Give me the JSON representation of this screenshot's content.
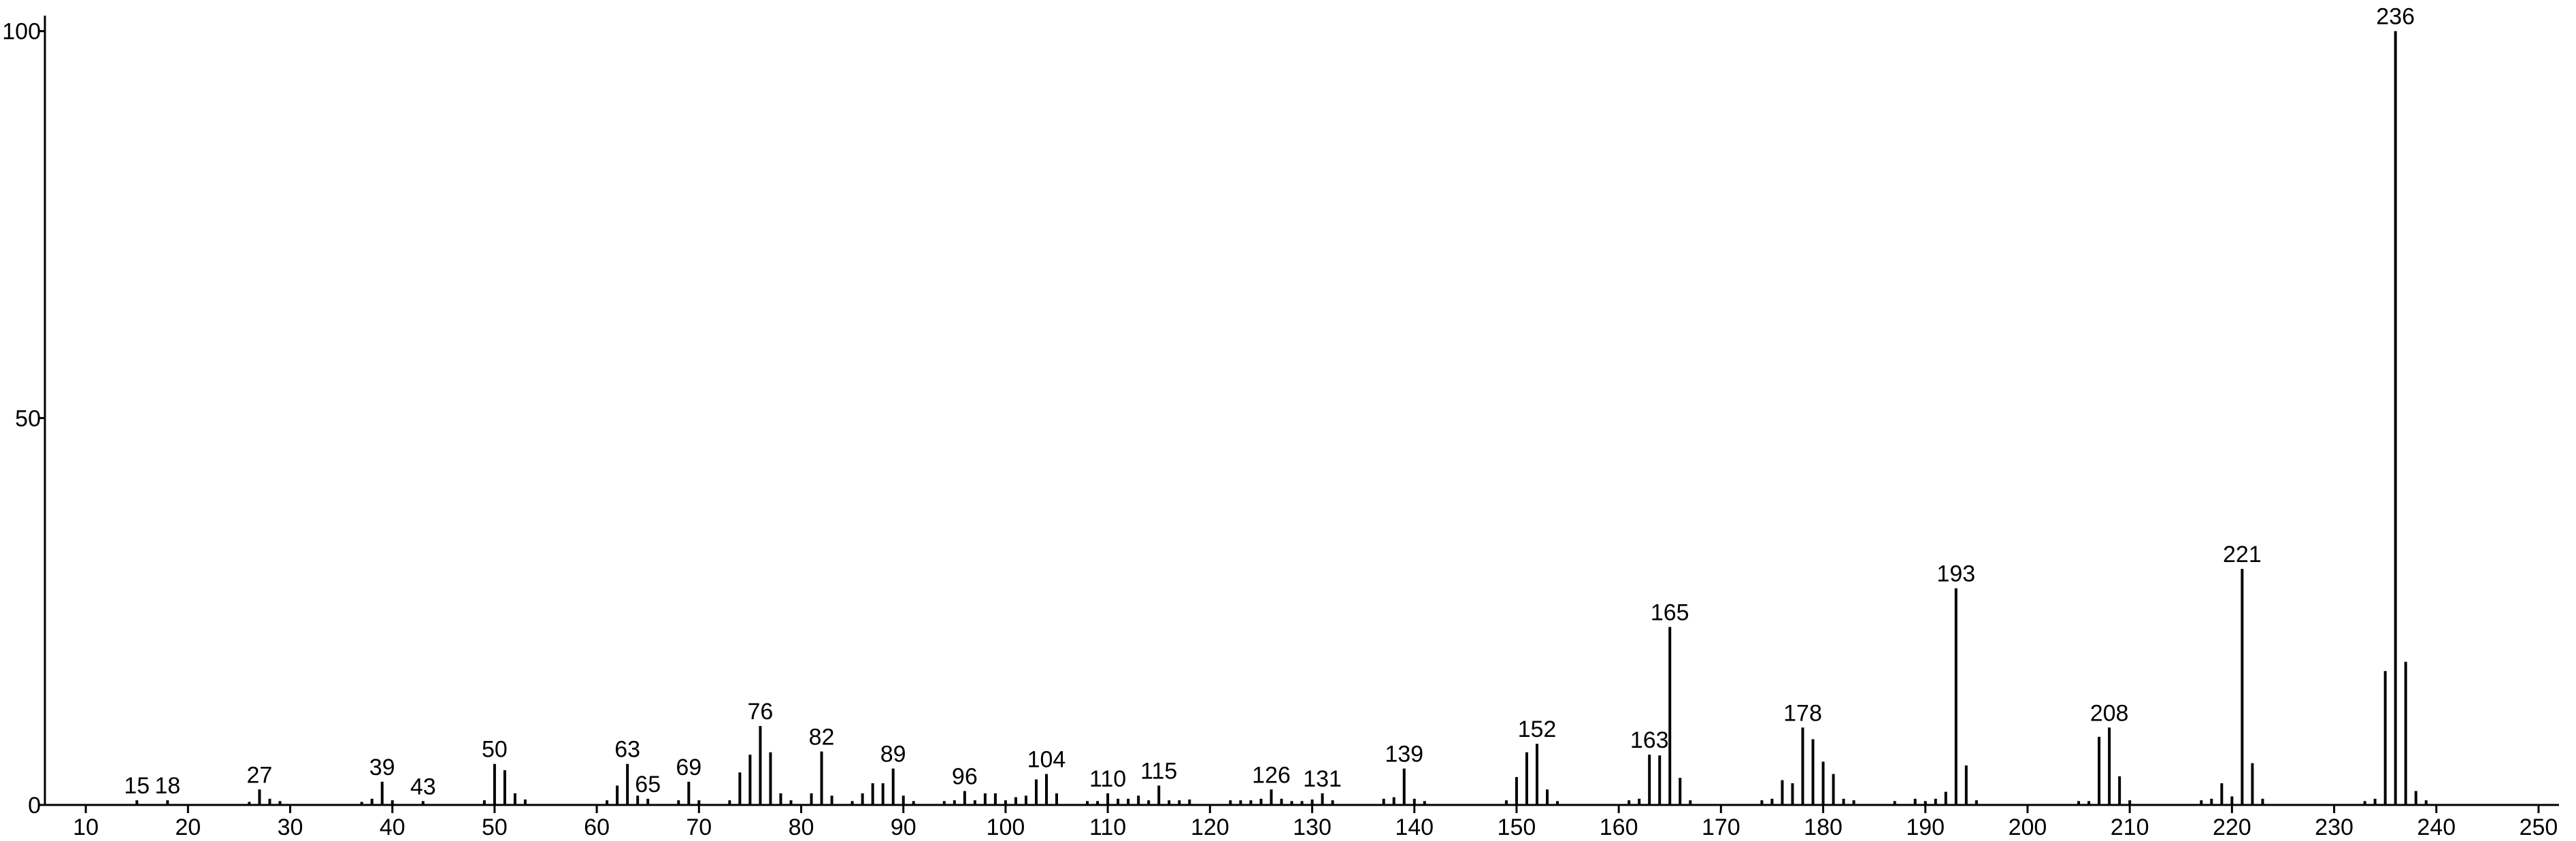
{
  "chart_data": {
    "type": "stem",
    "x": [
      15,
      18,
      26,
      27,
      28,
      29,
      37,
      38,
      39,
      40,
      43,
      49,
      50,
      51,
      52,
      53,
      61,
      62,
      63,
      64,
      65,
      68,
      69,
      70,
      73,
      74,
      75,
      76,
      77,
      78,
      79,
      81,
      82,
      83,
      85,
      86,
      87,
      88,
      89,
      90,
      91,
      94,
      95,
      96,
      97,
      98,
      99,
      100,
      101,
      102,
      103,
      104,
      105,
      108,
      109,
      110,
      111,
      112,
      113,
      114,
      115,
      116,
      117,
      118,
      122,
      123,
      124,
      125,
      126,
      127,
      128,
      129,
      130,
      131,
      132,
      137,
      138,
      139,
      140,
      141,
      149,
      150,
      151,
      152,
      153,
      154,
      161,
      162,
      163,
      164,
      165,
      166,
      167,
      174,
      175,
      176,
      177,
      178,
      179,
      180,
      181,
      182,
      183,
      187,
      189,
      190,
      191,
      192,
      193,
      194,
      195,
      205,
      206,
      207,
      208,
      209,
      210,
      217,
      218,
      219,
      220,
      221,
      222,
      223,
      233,
      234,
      235,
      236,
      237,
      238,
      239
    ],
    "values": [
      0.6,
      0.6,
      0.4,
      2,
      0.8,
      0.5,
      0.4,
      0.8,
      3,
      0.6,
      0.5,
      0.6,
      5.3,
      4.5,
      1.5,
      0.7,
      0.6,
      2.5,
      5.3,
      1.2,
      0.8,
      0.6,
      3,
      0.6,
      0.6,
      4.2,
      6.5,
      10.2,
      6.8,
      1.5,
      0.6,
      1.5,
      6.9,
      1.2,
      0.5,
      1.5,
      2.8,
      2.8,
      4.7,
      1.2,
      0.5,
      0.5,
      0.6,
      1.8,
      0.6,
      1.5,
      1.5,
      0.6,
      1,
      1.2,
      3.3,
      4,
      1.5,
      0.5,
      0.5,
      1.5,
      0.8,
      0.8,
      1.2,
      0.6,
      2.5,
      0.6,
      0.6,
      0.7,
      0.6,
      0.6,
      0.6,
      0.8,
      2,
      0.8,
      0.5,
      0.5,
      0.7,
      1.5,
      0.6,
      0.8,
      1,
      4.7,
      0.8,
      0.5,
      0.6,
      3.6,
      6.8,
      7.9,
      2,
      0.5,
      0.6,
      0.8,
      6.5,
      6.4,
      23,
      3.5,
      0.6,
      0.6,
      0.8,
      3.2,
      2.8,
      10,
      8.5,
      5.6,
      4,
      0.8,
      0.6,
      0.5,
      0.8,
      0.5,
      0.8,
      1.7,
      28,
      5.1,
      0.6,
      0.5,
      0.5,
      8.8,
      10,
      3.7,
      0.6,
      0.6,
      0.8,
      2.8,
      1.1,
      30.5,
      5.4,
      0.8,
      0.5,
      0.8,
      17.3,
      100,
      18.5,
      1.8,
      0.6
    ],
    "x_labels": [
      "15",
      "18",
      null,
      "27",
      null,
      null,
      null,
      null,
      "39",
      null,
      "43",
      null,
      "50",
      null,
      null,
      null,
      null,
      null,
      "63",
      null,
      "65",
      null,
      "69",
      null,
      null,
      null,
      null,
      "76",
      null,
      null,
      null,
      null,
      "82",
      null,
      null,
      null,
      null,
      null,
      "89",
      null,
      null,
      null,
      null,
      "96",
      null,
      null,
      null,
      null,
      null,
      null,
      null,
      "104",
      null,
      null,
      null,
      "110",
      null,
      null,
      null,
      null,
      "115",
      null,
      null,
      null,
      null,
      null,
      null,
      null,
      "126",
      null,
      null,
      null,
      null,
      "131",
      null,
      null,
      null,
      "139",
      null,
      null,
      null,
      null,
      null,
      "152",
      null,
      null,
      null,
      null,
      "163",
      null,
      "165",
      null,
      null,
      null,
      null,
      null,
      null,
      "178",
      null,
      null,
      null,
      null,
      null,
      null,
      null,
      null,
      null,
      null,
      "193",
      null,
      null,
      null,
      null,
      null,
      "208",
      null,
      null,
      null,
      null,
      null,
      null,
      "221",
      null,
      null,
      null,
      null,
      null,
      "236",
      null,
      null,
      null
    ],
    "color": "#000000",
    "xlim": [
      6,
      252
    ],
    "xticks": [
      10,
      20,
      30,
      40,
      50,
      60,
      70,
      80,
      90,
      100,
      110,
      120,
      130,
      140,
      150,
      160,
      170,
      180,
      190,
      200,
      210,
      220,
      230,
      240,
      250
    ],
    "ylim": [
      0,
      102
    ],
    "yticks": [
      0,
      50,
      100
    ]
  }
}
